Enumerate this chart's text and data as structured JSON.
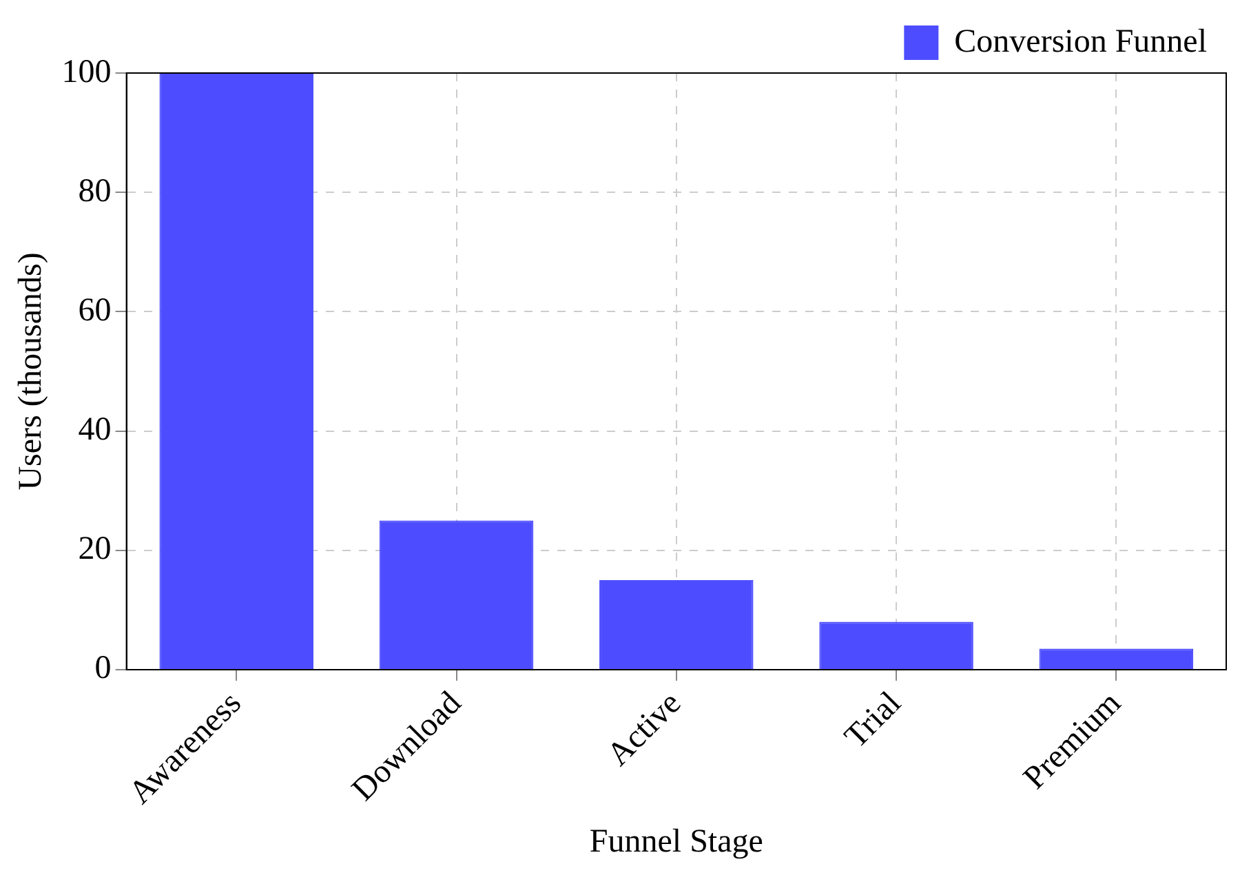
{
  "chart_data": {
    "type": "bar",
    "xlabel": "Funnel Stage",
    "ylabel": "Users (thousands)",
    "categories": [
      "Awareness",
      "Download",
      "Active",
      "Trial",
      "Premium"
    ],
    "series": [
      {
        "name": "Conversion Funnel",
        "color": "#4d4dff",
        "values": [
          100,
          25,
          15,
          8,
          3.5
        ]
      }
    ],
    "ylim": [
      0,
      100
    ],
    "yticks": [
      0,
      20,
      40,
      60,
      80,
      100
    ],
    "grid": true,
    "legend": "top right"
  }
}
